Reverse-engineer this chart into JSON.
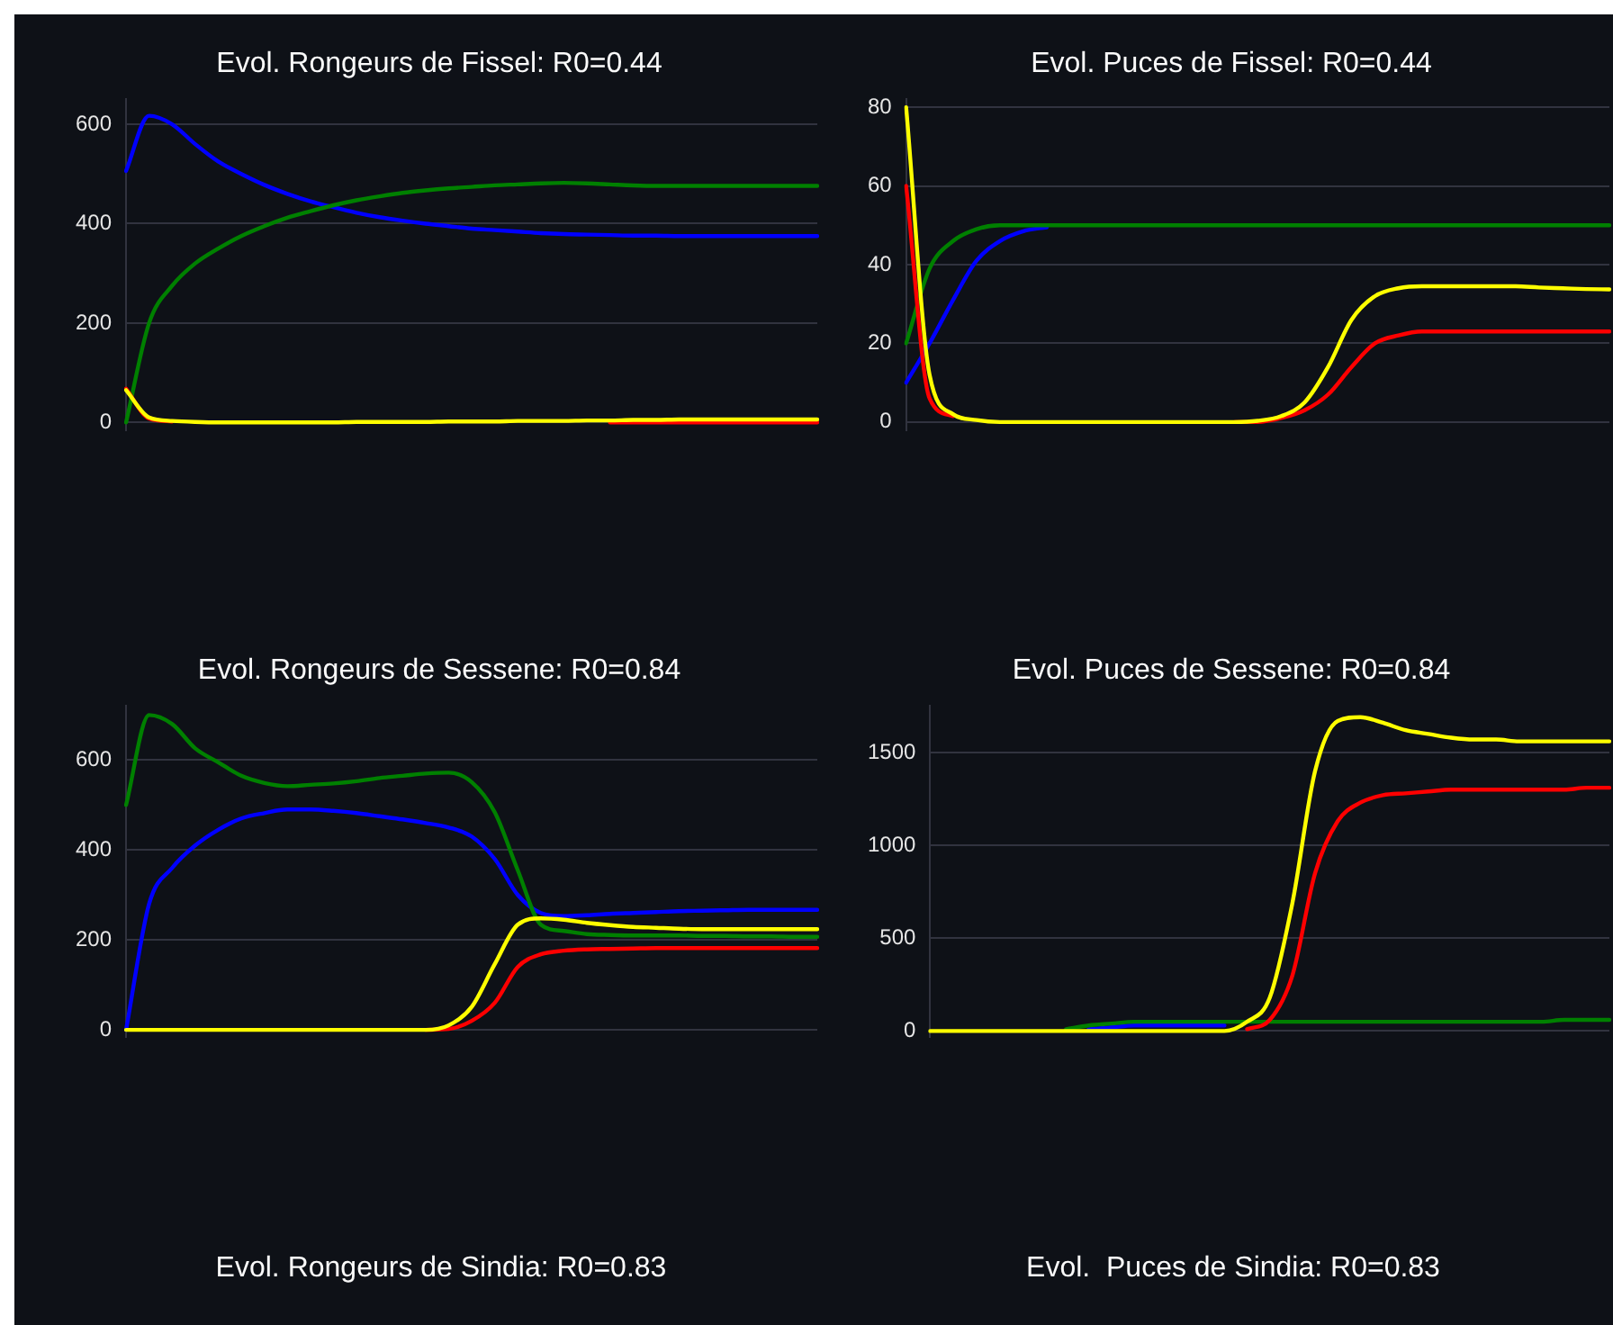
{
  "chart_data": [
    {
      "type": "line",
      "title": "Evol. Rongeurs de Fissel: R0=0.44",
      "categories": [
        null,
        null,
        null,
        null,
        null,
        null,
        null,
        null,
        null,
        null,
        null,
        null,
        null,
        null,
        null,
        null,
        null,
        null,
        null,
        null,
        null,
        null,
        null,
        null,
        null,
        null,
        null,
        null,
        null,
        null,
        null
      ],
      "ylim": [
        -15,
        650
      ],
      "yticks": [
        0,
        200,
        400,
        600
      ],
      "grid": "y",
      "legend": false,
      "tick_labels": "y",
      "marker": "none",
      "line_style": "solid",
      "series": [
        {
          "color": "#0000ff",
          "values": [
            506,
            617,
            600,
            560,
            525,
            500,
            478,
            460,
            445,
            433,
            422,
            413,
            406,
            400,
            395,
            390,
            387,
            384,
            381,
            379,
            378,
            377,
            376,
            376,
            375,
            375,
            375,
            375,
            375,
            375,
            375
          ]
        },
        {
          "color": "#008000",
          "values": [
            0,
            200,
            275,
            320,
            350,
            375,
            395,
            412,
            425,
            437,
            447,
            455,
            462,
            467,
            471,
            474,
            477,
            479,
            481,
            482,
            481,
            479,
            477,
            476,
            476,
            476,
            476,
            476,
            476,
            476,
            476
          ]
        },
        {
          "color": "#ff0000",
          "values": [
            68,
            8,
            2,
            null,
            null,
            null,
            null,
            null,
            null,
            null,
            null,
            null,
            null,
            null,
            null,
            null,
            null,
            null,
            null,
            null,
            null,
            0,
            0,
            0,
            0,
            0,
            0,
            0,
            0,
            0,
            0
          ]
        },
        {
          "color": "#ffff00",
          "values": [
            65,
            10,
            3,
            1,
            0,
            0,
            0,
            0,
            0,
            0,
            1,
            1,
            1,
            1,
            2,
            2,
            2,
            3,
            3,
            3,
            4,
            4,
            5,
            5,
            6,
            6,
            6,
            6,
            6,
            6,
            6
          ]
        }
      ]
    },
    {
      "type": "line",
      "title": "Evol. Puces de Fissel: R0=0.44",
      "categories": [
        null,
        null,
        null,
        null,
        null,
        null,
        null,
        null,
        null,
        null,
        null,
        null,
        null,
        null,
        null,
        null,
        null,
        null,
        null,
        null,
        null,
        null,
        null,
        null,
        null,
        null,
        null,
        null,
        null,
        null,
        null
      ],
      "ylim": [
        -2,
        82
      ],
      "yticks": [
        0,
        20,
        40,
        60,
        80
      ],
      "grid": "y",
      "legend": false,
      "tick_labels": "y",
      "marker": "none",
      "line_style": "solid",
      "series": [
        {
          "color": "#0000ff",
          "values": [
            10,
            20,
            31,
            41,
            46,
            48.5,
            49.5,
            null,
            null,
            null,
            null,
            null,
            null,
            null,
            null,
            null,
            null,
            null,
            null,
            null,
            null,
            null,
            null,
            null,
            null,
            null,
            null,
            null,
            null,
            null,
            null
          ]
        },
        {
          "color": "#008000",
          "values": [
            20,
            39,
            46,
            49,
            50,
            50,
            50,
            50,
            50,
            50,
            50,
            50,
            50,
            50,
            50,
            50,
            50,
            50,
            50,
            50,
            50,
            50,
            50,
            50,
            50,
            50,
            50,
            50,
            50,
            50,
            50
          ]
        },
        {
          "color": "#ff0000",
          "values": [
            60,
            6,
            1.5,
            null,
            null,
            null,
            null,
            null,
            null,
            null,
            null,
            null,
            null,
            null,
            0,
            0,
            1,
            3,
            7,
            14,
            20,
            22,
            23,
            23,
            23,
            23,
            23,
            23,
            23,
            23,
            23
          ]
        },
        {
          "color": "#ffff00",
          "values": [
            80,
            12,
            2,
            0.5,
            0,
            0,
            0,
            0,
            0,
            0,
            0,
            0,
            0,
            0,
            0,
            0.3,
            1.5,
            5,
            14,
            26,
            32,
            34,
            34.5,
            34.5,
            34.5,
            34.5,
            34.5,
            34.2,
            34,
            33.8,
            33.7
          ]
        }
      ]
    },
    {
      "type": "line",
      "title": "Evol. Rongeurs de Sessene: R0=0.84",
      "categories": [
        null,
        null,
        null,
        null,
        null,
        null,
        null,
        null,
        null,
        null,
        null,
        null,
        null,
        null,
        null,
        null,
        null,
        null,
        null,
        null,
        null,
        null,
        null,
        null,
        null,
        null,
        null,
        null,
        null,
        null,
        null
      ],
      "ylim": [
        -15,
        720
      ],
      "yticks": [
        0,
        200,
        400,
        600
      ],
      "grid": "y",
      "legend": false,
      "tick_labels": "y",
      "marker": "none",
      "line_style": "solid",
      "series": [
        {
          "color": "#0000ff",
          "values": [
            0,
            280,
            360,
            410,
            445,
            470,
            482,
            490,
            490,
            487,
            482,
            475,
            468,
            460,
            450,
            430,
            380,
            300,
            260,
            253,
            255,
            258,
            260,
            262,
            264,
            265,
            266,
            267,
            267,
            267,
            267
          ]
        },
        {
          "color": "#008000",
          "values": [
            500,
            700,
            680,
            626,
            595,
            565,
            549,
            542,
            545,
            548,
            553,
            560,
            565,
            570,
            572,
            551,
            484,
            355,
            234,
            220,
            213,
            211,
            210,
            210,
            210,
            209,
            209,
            208,
            208,
            207,
            207
          ]
        },
        {
          "color": "#ff0000",
          "values": [
            null,
            null,
            null,
            null,
            null,
            null,
            null,
            null,
            null,
            null,
            null,
            null,
            null,
            0,
            2,
            20,
            60,
            140,
            168,
            176,
            179,
            180,
            181,
            182,
            182,
            182,
            182,
            182,
            182,
            182,
            182
          ]
        },
        {
          "color": "#ffff00",
          "values": [
            0,
            0,
            0,
            0,
            0,
            0,
            0,
            0,
            0,
            0,
            0,
            0,
            0,
            0,
            10,
            51,
            146,
            234,
            248,
            245,
            238,
            233,
            229,
            227,
            225,
            224,
            224,
            224,
            224,
            224,
            224
          ]
        }
      ]
    },
    {
      "type": "line",
      "title": "Evol. Puces de Sessene: R0=0.84",
      "categories": [
        null,
        null,
        null,
        null,
        null,
        null,
        null,
        null,
        null,
        null,
        null,
        null,
        null,
        null,
        null,
        null,
        null,
        null,
        null,
        null,
        null,
        null,
        null,
        null,
        null,
        null,
        null,
        null,
        null,
        null,
        null
      ],
      "ylim": [
        -30,
        1750
      ],
      "yticks": [
        0,
        500,
        1000,
        1500
      ],
      "grid": "y",
      "legend": false,
      "tick_labels": "y",
      "marker": "none",
      "line_style": "solid",
      "series": [
        {
          "color": "#0000ff",
          "values": [
            null,
            null,
            null,
            null,
            null,
            null,
            null,
            10,
            20,
            30,
            30,
            30,
            30,
            30,
            null,
            null,
            null,
            null,
            null,
            null,
            null,
            null,
            null,
            null,
            null,
            null,
            null,
            null,
            null,
            null,
            null
          ]
        },
        {
          "color": "#008000",
          "values": [
            null,
            null,
            null,
            null,
            null,
            null,
            10,
            30,
            40,
            50,
            50,
            50,
            50,
            50,
            50,
            50,
            50,
            50,
            50,
            50,
            50,
            50,
            50,
            50,
            50,
            50,
            50,
            50,
            60,
            60,
            60
          ]
        },
        {
          "color": "#ff0000",
          "values": [
            null,
            null,
            null,
            null,
            null,
            null,
            null,
            null,
            null,
            null,
            null,
            null,
            null,
            null,
            10,
            60,
            300,
            850,
            1130,
            1230,
            1270,
            1280,
            1290,
            1300,
            1300,
            1300,
            1300,
            1300,
            1300,
            1310,
            1310
          ]
        },
        {
          "color": "#ffff00",
          "values": [
            0,
            0,
            0,
            0,
            0,
            0,
            0,
            0,
            0,
            0,
            0,
            0,
            0,
            0,
            50,
            180,
            690,
            1400,
            1670,
            1690,
            1660,
            1620,
            1600,
            1580,
            1570,
            1570,
            1560,
            1560,
            1560,
            1560,
            1560
          ]
        }
      ]
    },
    {
      "type": "other",
      "title": "Evol. Rongeurs de Sindia: R0=0.83"
    },
    {
      "type": "other",
      "title": "Evol.  Puces de Sindia: R0=0.83"
    }
  ]
}
